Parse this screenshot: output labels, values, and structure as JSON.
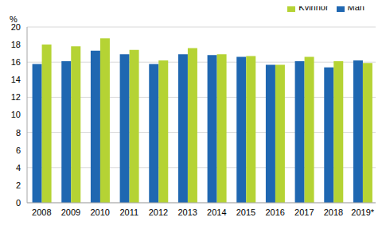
{
  "chart_data": {
    "type": "bar",
    "y_label": "%",
    "categories": [
      "2008",
      "2009",
      "2010",
      "2011",
      "2012",
      "2013",
      "2014",
      "2015",
      "2016",
      "2017",
      "2018",
      "2019*"
    ],
    "series": [
      {
        "name": "Män",
        "color": "#1f67b1",
        "values": [
          15.8,
          16.1,
          17.3,
          16.9,
          15.8,
          16.9,
          16.8,
          16.6,
          15.7,
          16.1,
          15.4,
          16.2
        ]
      },
      {
        "name": "Kvinnor",
        "color": "#b5d334",
        "values": [
          18.0,
          17.8,
          18.7,
          17.4,
          16.2,
          17.6,
          16.9,
          16.7,
          15.7,
          16.6,
          16.1,
          15.9
        ]
      }
    ],
    "ylim": [
      0,
      20
    ],
    "yticks": [
      0,
      2,
      4,
      6,
      8,
      10,
      12,
      14,
      16,
      18,
      20
    ],
    "grid": true,
    "legend": "top-right"
  }
}
